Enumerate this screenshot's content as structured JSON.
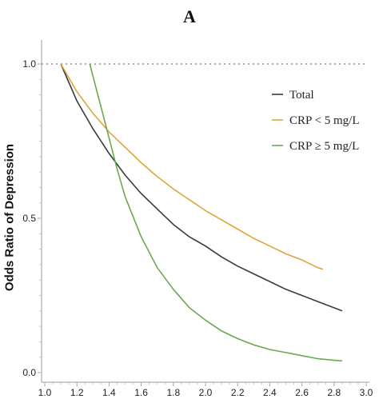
{
  "panel_label": "A",
  "chart_data": {
    "type": "line",
    "title": "",
    "xlabel": "",
    "ylabel": "Odds Ratio of Depression",
    "xlim": [
      1.0,
      3.0
    ],
    "ylim": [
      0.0,
      1.0
    ],
    "x_ticks": [
      "1.0",
      "1.2",
      "1.4",
      "1.6",
      "1.8",
      "2.0",
      "2.2",
      "2.4",
      "2.6",
      "2.8",
      "3.0"
    ],
    "y_ticks": [
      "0.0",
      "0.5",
      "1.0"
    ],
    "reference_line": {
      "y": 1.0,
      "style": "dotted"
    },
    "legend_position": "top-right",
    "grid": false,
    "series": [
      {
        "name": "Total",
        "color": "#3a3a3a",
        "x": [
          1.1,
          1.2,
          1.3,
          1.4,
          1.5,
          1.6,
          1.7,
          1.8,
          1.9,
          2.0,
          2.1,
          2.2,
          2.3,
          2.4,
          2.5,
          2.6,
          2.7,
          2.8,
          2.85
        ],
        "y": [
          1.0,
          0.88,
          0.79,
          0.71,
          0.64,
          0.58,
          0.53,
          0.48,
          0.44,
          0.41,
          0.375,
          0.345,
          0.32,
          0.295,
          0.27,
          0.25,
          0.23,
          0.21,
          0.2
        ]
      },
      {
        "name": "CRP < 5 mg/L",
        "color": "#e0a53a",
        "x": [
          1.1,
          1.2,
          1.3,
          1.4,
          1.5,
          1.6,
          1.7,
          1.8,
          1.9,
          2.0,
          2.1,
          2.2,
          2.3,
          2.4,
          2.5,
          2.6,
          2.7,
          2.73
        ],
        "y": [
          1.0,
          0.91,
          0.84,
          0.78,
          0.73,
          0.68,
          0.635,
          0.595,
          0.56,
          0.525,
          0.495,
          0.465,
          0.435,
          0.41,
          0.385,
          0.365,
          0.34,
          0.335
        ]
      },
      {
        "name": "CRP ≥ 5 mg/L",
        "color": "#6aa84f",
        "x": [
          1.28,
          1.3,
          1.35,
          1.4,
          1.45,
          1.5,
          1.6,
          1.7,
          1.8,
          1.9,
          2.0,
          2.1,
          2.2,
          2.3,
          2.4,
          2.5,
          2.6,
          2.7,
          2.8,
          2.85
        ],
        "y": [
          1.0,
          0.96,
          0.86,
          0.76,
          0.66,
          0.57,
          0.44,
          0.34,
          0.27,
          0.21,
          0.17,
          0.135,
          0.11,
          0.09,
          0.075,
          0.065,
          0.055,
          0.045,
          0.04,
          0.038
        ]
      }
    ]
  }
}
